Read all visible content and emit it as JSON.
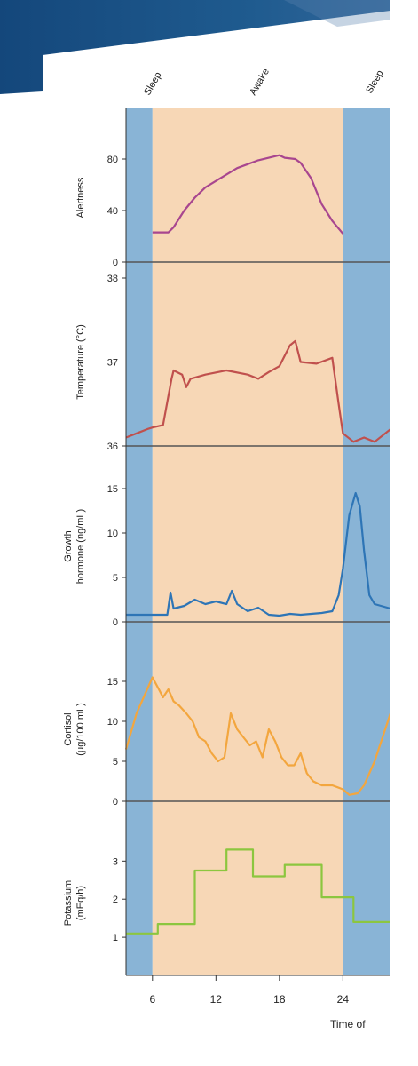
{
  "chart_data": {
    "type": "line",
    "x_axis": {
      "title": "Time of",
      "range": [
        3.5,
        28.5
      ],
      "ticks": [
        6,
        12,
        18,
        24
      ]
    },
    "state_labels": [
      "Sleep",
      "Awake",
      "Sleep"
    ],
    "bands": [
      {
        "state": "sleep",
        "from": 3.5,
        "to": 6,
        "color": "#89b4d6"
      },
      {
        "state": "awake",
        "from": 6,
        "to": 24,
        "color": "#f7d7b6"
      },
      {
        "state": "sleep",
        "from": 24,
        "to": 28.5,
        "color": "#89b4d6"
      }
    ],
    "panels": [
      {
        "ylabel": [
          "Alertness"
        ],
        "ylim": [
          0,
          100
        ],
        "yticks": [
          0,
          40,
          80
        ],
        "color": "#a8468f",
        "points": [
          [
            6,
            23
          ],
          [
            7.5,
            23
          ],
          [
            8,
            27
          ],
          [
            9,
            40
          ],
          [
            10,
            50
          ],
          [
            11,
            58
          ],
          [
            12,
            63
          ],
          [
            13,
            68
          ],
          [
            14,
            73
          ],
          [
            15,
            76
          ],
          [
            16,
            79
          ],
          [
            17,
            81
          ],
          [
            18,
            83
          ],
          [
            18.5,
            81
          ],
          [
            19.5,
            80
          ],
          [
            20,
            77
          ],
          [
            21,
            65
          ],
          [
            22,
            45
          ],
          [
            23,
            32
          ],
          [
            24,
            22
          ]
        ]
      },
      {
        "ylabel": [
          "Temperature (°C)"
        ],
        "ylim": [
          36,
          38
        ],
        "yticks": [
          36,
          37,
          38
        ],
        "color": "#c0504d",
        "points": [
          [
            3.5,
            36.1
          ],
          [
            4.5,
            36.15
          ],
          [
            5.5,
            36.2
          ],
          [
            6,
            36.22
          ],
          [
            7,
            36.25
          ],
          [
            7.8,
            36.8
          ],
          [
            8,
            36.9
          ],
          [
            8.8,
            36.85
          ],
          [
            9.2,
            36.7
          ],
          [
            9.6,
            36.8
          ],
          [
            11,
            36.85
          ],
          [
            13,
            36.9
          ],
          [
            15,
            36.85
          ],
          [
            16,
            36.8
          ],
          [
            17,
            36.88
          ],
          [
            18,
            36.95
          ],
          [
            19,
            37.2
          ],
          [
            19.5,
            37.25
          ],
          [
            20,
            37.0
          ],
          [
            21.5,
            36.98
          ],
          [
            23,
            37.05
          ],
          [
            23.6,
            36.5
          ],
          [
            24,
            36.15
          ],
          [
            25,
            36.05
          ],
          [
            26,
            36.1
          ],
          [
            27,
            36.05
          ],
          [
            28.5,
            36.2
          ]
        ]
      },
      {
        "ylabel": [
          "Growth",
          "hormone (ng/mL)"
        ],
        "ylim": [
          0,
          17
        ],
        "yticks": [
          0,
          5,
          10,
          15
        ],
        "color": "#2e75b6",
        "points": [
          [
            3.5,
            0.8
          ],
          [
            4.5,
            0.8
          ],
          [
            5.5,
            0.8
          ],
          [
            6,
            0.8
          ],
          [
            7.4,
            0.8
          ],
          [
            7.7,
            3.3
          ],
          [
            8,
            1.5
          ],
          [
            9,
            1.8
          ],
          [
            10,
            2.5
          ],
          [
            11,
            2.0
          ],
          [
            12,
            2.3
          ],
          [
            13,
            2.0
          ],
          [
            13.5,
            3.5
          ],
          [
            14,
            2.0
          ],
          [
            15,
            1.2
          ],
          [
            16,
            1.6
          ],
          [
            17,
            0.8
          ],
          [
            18,
            0.7
          ],
          [
            19,
            0.9
          ],
          [
            20,
            0.8
          ],
          [
            21,
            0.9
          ],
          [
            22,
            1.0
          ],
          [
            23,
            1.2
          ],
          [
            23.6,
            3
          ],
          [
            24,
            6
          ],
          [
            24.6,
            12
          ],
          [
            25.2,
            14.5
          ],
          [
            25.6,
            13
          ],
          [
            26,
            8
          ],
          [
            26.5,
            3
          ],
          [
            27,
            2.0
          ],
          [
            28.5,
            1.5
          ]
        ]
      },
      {
        "ylabel": [
          "Cortisol",
          "(μg/100 mL)"
        ],
        "ylim": [
          0,
          18
        ],
        "yticks": [
          0,
          5,
          10,
          15
        ],
        "color": "#f3a63e",
        "points": [
          [
            3.5,
            6.5
          ],
          [
            4.5,
            11
          ],
          [
            5.5,
            14
          ],
          [
            6,
            15.5
          ],
          [
            6.6,
            14
          ],
          [
            7,
            13
          ],
          [
            7.5,
            14
          ],
          [
            8,
            12.5
          ],
          [
            8.5,
            12
          ],
          [
            9.2,
            11
          ],
          [
            9.8,
            10
          ],
          [
            10.4,
            8
          ],
          [
            11,
            7.5
          ],
          [
            11.6,
            6
          ],
          [
            12.2,
            5
          ],
          [
            12.8,
            5.5
          ],
          [
            13.4,
            11
          ],
          [
            14,
            9
          ],
          [
            14.6,
            8
          ],
          [
            15.2,
            7
          ],
          [
            15.8,
            7.5
          ],
          [
            16.4,
            5.5
          ],
          [
            17,
            9
          ],
          [
            17.6,
            7.5
          ],
          [
            18.2,
            5.5
          ],
          [
            18.8,
            4.5
          ],
          [
            19.4,
            4.5
          ],
          [
            20,
            6
          ],
          [
            20.6,
            3.5
          ],
          [
            21.2,
            2.5
          ],
          [
            22,
            2.0
          ],
          [
            23,
            2.0
          ],
          [
            24,
            1.5
          ],
          [
            24.6,
            0.8
          ],
          [
            25.4,
            1.0
          ],
          [
            26,
            2.0
          ],
          [
            27,
            5
          ],
          [
            28,
            9
          ],
          [
            28.5,
            11
          ]
        ]
      },
      {
        "ylabel": [
          "Potassium",
          "(mEq/h)"
        ],
        "ylim": [
          0,
          3.8
        ],
        "yticks": [
          1,
          2,
          3
        ],
        "color": "#8cc63f",
        "step": true,
        "points": [
          [
            3.5,
            1.1
          ],
          [
            6.5,
            1.1
          ],
          [
            6.5,
            1.35
          ],
          [
            10,
            1.35
          ],
          [
            10,
            2.75
          ],
          [
            13,
            2.75
          ],
          [
            13,
            3.3
          ],
          [
            15.5,
            3.3
          ],
          [
            15.5,
            2.6
          ],
          [
            18.5,
            2.6
          ],
          [
            18.5,
            2.9
          ],
          [
            22,
            2.9
          ],
          [
            22,
            2.05
          ],
          [
            25,
            2.05
          ],
          [
            25,
            1.4
          ],
          [
            28.5,
            1.4
          ]
        ]
      }
    ]
  }
}
